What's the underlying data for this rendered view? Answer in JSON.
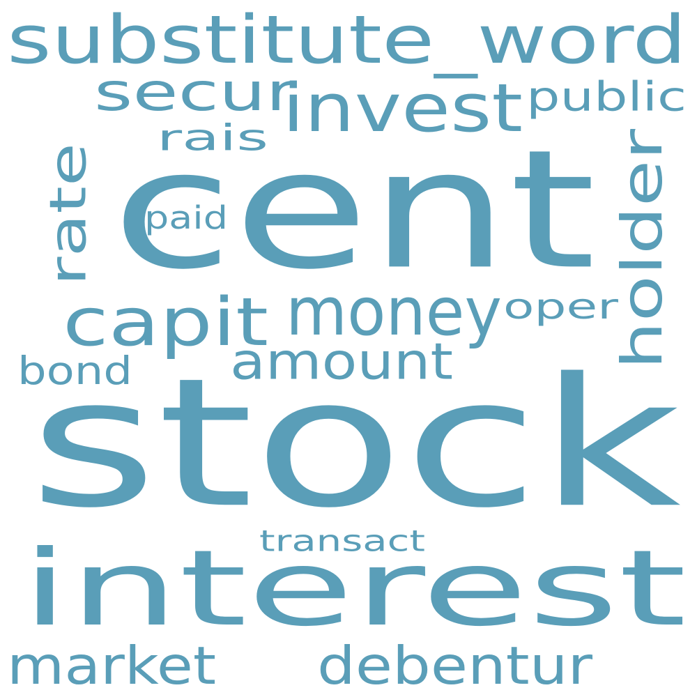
{
  "palette": {
    "word_color": "#5a9eb8",
    "background": "#ffffff"
  },
  "words": [
    {
      "text": "stock"
    },
    {
      "text": "cent"
    },
    {
      "text": "interest"
    },
    {
      "text": "substitute_word"
    },
    {
      "text": "money"
    },
    {
      "text": "capit"
    },
    {
      "text": "invest"
    },
    {
      "text": "amount"
    },
    {
      "text": "holder"
    },
    {
      "text": "debentur"
    },
    {
      "text": "market"
    },
    {
      "text": "secur"
    },
    {
      "text": "rate"
    },
    {
      "text": "public"
    },
    {
      "text": "bond"
    },
    {
      "text": "rais"
    },
    {
      "text": "oper"
    },
    {
      "text": "paid"
    },
    {
      "text": "transact"
    }
  ]
}
